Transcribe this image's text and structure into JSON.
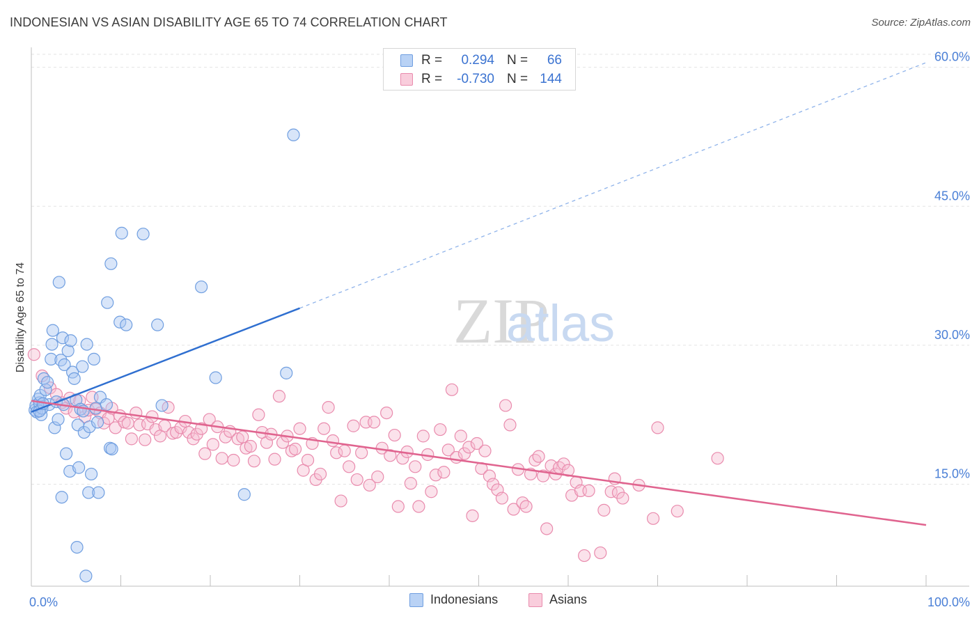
{
  "header": {
    "title": "INDONESIAN VS ASIAN DISABILITY AGE 65 TO 74 CORRELATION CHART",
    "source": "Source: ZipAtlas.com"
  },
  "watermark": {
    "part1": "ZIP",
    "part2": "atlas"
  },
  "legend": {
    "rows": [
      {
        "r_label": "R =",
        "r_value": "0.294",
        "n_label": "N =",
        "n_value": "66"
      },
      {
        "r_label": "R =",
        "r_value": "-0.730",
        "n_label": "N =",
        "n_value": "144"
      }
    ]
  },
  "chart_data": {
    "type": "scatter",
    "title": "INDONESIAN VS ASIAN DISABILITY AGE 65 TO 74 CORRELATION CHART",
    "xlabel": "",
    "ylabel": "Disability Age 65 to 74",
    "xlim": [
      0,
      100
    ],
    "ylim": [
      4,
      62
    ],
    "x_tick_labels": [
      "0.0%",
      "100.0%"
    ],
    "y_ticks": [
      15,
      30,
      45,
      60
    ],
    "y_tick_labels": [
      "15.0%",
      "30.0%",
      "45.0%",
      "60.0%"
    ],
    "grid": true,
    "legend_position": "top-center",
    "colors": {
      "indonesians_fill": "#a9c6f1",
      "indonesians_stroke": "#6f9ee0",
      "indonesians_line": "#2f6fd0",
      "asians_fill": "#f6bfd2",
      "asians_stroke": "#e98bad",
      "asians_line": "#e0648f",
      "tick_label": "#4a7fd6"
    },
    "series": [
      {
        "name": "Indonesians",
        "r": 0.294,
        "n": 66,
        "trend": {
          "x0": 0,
          "y0": 22.8,
          "x1": 30,
          "y1": 34.0,
          "dash_to_x": 100,
          "dash_to_y": 60.5
        },
        "points": [
          [
            0.4,
            23.0
          ],
          [
            0.5,
            23.5
          ],
          [
            0.6,
            22.8
          ],
          [
            0.8,
            24.2
          ],
          [
            0.9,
            23.8
          ],
          [
            1.0,
            24.6
          ],
          [
            1.1,
            22.5
          ],
          [
            1.2,
            23.2
          ],
          [
            1.4,
            26.4
          ],
          [
            1.6,
            25.2
          ],
          [
            1.8,
            26.0
          ],
          [
            2.0,
            23.6
          ],
          [
            2.2,
            28.5
          ],
          [
            2.3,
            30.1
          ],
          [
            2.4,
            31.6
          ],
          [
            2.6,
            21.1
          ],
          [
            2.8,
            23.9
          ],
          [
            3.0,
            22.0
          ],
          [
            3.1,
            36.8
          ],
          [
            3.3,
            28.4
          ],
          [
            3.4,
            13.6
          ],
          [
            3.5,
            30.8
          ],
          [
            3.6,
            23.6
          ],
          [
            3.7,
            27.9
          ],
          [
            3.9,
            18.3
          ],
          [
            4.1,
            29.4
          ],
          [
            4.3,
            16.4
          ],
          [
            4.4,
            30.5
          ],
          [
            4.6,
            27.1
          ],
          [
            4.8,
            26.4
          ],
          [
            5.0,
            24.1
          ],
          [
            5.1,
            8.2
          ],
          [
            5.2,
            21.4
          ],
          [
            5.3,
            16.8
          ],
          [
            5.5,
            23.1
          ],
          [
            5.7,
            27.7
          ],
          [
            5.8,
            22.9
          ],
          [
            5.9,
            20.6
          ],
          [
            6.1,
            5.1
          ],
          [
            6.2,
            30.1
          ],
          [
            6.4,
            14.1
          ],
          [
            6.5,
            21.2
          ],
          [
            6.7,
            16.1
          ],
          [
            7.0,
            28.5
          ],
          [
            7.2,
            23.2
          ],
          [
            7.4,
            21.7
          ],
          [
            7.5,
            14.1
          ],
          [
            7.7,
            24.4
          ],
          [
            8.4,
            23.6
          ],
          [
            8.5,
            34.6
          ],
          [
            8.8,
            18.9
          ],
          [
            8.9,
            38.8
          ],
          [
            9.0,
            18.8
          ],
          [
            9.9,
            32.5
          ],
          [
            10.1,
            42.1
          ],
          [
            10.6,
            32.2
          ],
          [
            12.5,
            42.0
          ],
          [
            14.1,
            32.2
          ],
          [
            14.6,
            23.5
          ],
          [
            19.0,
            36.3
          ],
          [
            20.6,
            26.5
          ],
          [
            23.8,
            13.9
          ],
          [
            28.5,
            27.0
          ],
          [
            29.3,
            52.7
          ],
          [
            0.9,
            22.9
          ],
          [
            1.3,
            23.7
          ]
        ]
      },
      {
        "name": "Asians",
        "r": -0.73,
        "n": 144,
        "trend": {
          "x0": 0,
          "y0": 24.0,
          "x1": 100,
          "y1": 10.6
        },
        "points": [
          [
            0.3,
            29.0
          ],
          [
            1.2,
            26.7
          ],
          [
            2.1,
            25.4
          ],
          [
            2.8,
            24.7
          ],
          [
            3.4,
            23.8
          ],
          [
            3.9,
            23.2
          ],
          [
            4.3,
            24.3
          ],
          [
            4.8,
            22.8
          ],
          [
            5.4,
            24.0
          ],
          [
            6.0,
            22.3
          ],
          [
            6.4,
            23.0
          ],
          [
            6.8,
            24.4
          ],
          [
            7.2,
            23.1
          ],
          [
            7.7,
            22.7
          ],
          [
            8.1,
            21.6
          ],
          [
            8.6,
            22.1
          ],
          [
            9.0,
            23.2
          ],
          [
            9.4,
            21.1
          ],
          [
            9.9,
            22.4
          ],
          [
            10.4,
            21.7
          ],
          [
            10.8,
            21.6
          ],
          [
            11.2,
            19.9
          ],
          [
            11.7,
            22.7
          ],
          [
            12.1,
            21.4
          ],
          [
            12.7,
            19.8
          ],
          [
            13.0,
            21.5
          ],
          [
            13.5,
            22.3
          ],
          [
            13.9,
            20.9
          ],
          [
            14.4,
            20.2
          ],
          [
            14.9,
            21.3
          ],
          [
            15.3,
            23.3
          ],
          [
            15.8,
            20.5
          ],
          [
            16.2,
            20.6
          ],
          [
            16.7,
            21.1
          ],
          [
            17.2,
            21.8
          ],
          [
            17.6,
            20.6
          ],
          [
            18.1,
            19.9
          ],
          [
            18.5,
            20.4
          ],
          [
            19.0,
            21.0
          ],
          [
            19.4,
            18.3
          ],
          [
            19.9,
            22.0
          ],
          [
            20.3,
            19.3
          ],
          [
            20.8,
            21.2
          ],
          [
            21.3,
            17.8
          ],
          [
            21.7,
            20.1
          ],
          [
            22.2,
            20.7
          ],
          [
            22.6,
            17.6
          ],
          [
            23.1,
            19.9
          ],
          [
            23.6,
            20.1
          ],
          [
            24.0,
            18.9
          ],
          [
            24.5,
            19.1
          ],
          [
            24.9,
            17.5
          ],
          [
            25.4,
            22.5
          ],
          [
            25.8,
            20.6
          ],
          [
            26.3,
            19.5
          ],
          [
            26.8,
            20.4
          ],
          [
            27.2,
            17.7
          ],
          [
            27.7,
            24.5
          ],
          [
            28.1,
            19.5
          ],
          [
            28.6,
            20.2
          ],
          [
            29.1,
            18.6
          ],
          [
            29.5,
            18.8
          ],
          [
            30.0,
            21.0
          ],
          [
            30.4,
            16.5
          ],
          [
            30.9,
            17.6
          ],
          [
            31.4,
            19.4
          ],
          [
            31.8,
            15.5
          ],
          [
            32.3,
            16.1
          ],
          [
            32.7,
            21.0
          ],
          [
            33.2,
            23.3
          ],
          [
            33.7,
            19.7
          ],
          [
            34.1,
            18.4
          ],
          [
            34.6,
            13.2
          ],
          [
            35.0,
            18.6
          ],
          [
            35.5,
            16.9
          ],
          [
            36.0,
            21.3
          ],
          [
            36.4,
            15.5
          ],
          [
            36.9,
            18.4
          ],
          [
            37.4,
            21.7
          ],
          [
            37.8,
            14.9
          ],
          [
            38.3,
            21.7
          ],
          [
            38.7,
            15.8
          ],
          [
            39.2,
            18.9
          ],
          [
            39.7,
            22.7
          ],
          [
            40.1,
            18.1
          ],
          [
            40.6,
            20.3
          ],
          [
            41.0,
            12.6
          ],
          [
            41.5,
            17.8
          ],
          [
            42.0,
            18.5
          ],
          [
            42.4,
            15.1
          ],
          [
            42.9,
            16.9
          ],
          [
            43.3,
            12.6
          ],
          [
            43.8,
            20.2
          ],
          [
            44.3,
            18.2
          ],
          [
            44.7,
            14.2
          ],
          [
            45.2,
            16.0
          ],
          [
            45.7,
            20.9
          ],
          [
            46.1,
            16.3
          ],
          [
            46.6,
            18.7
          ],
          [
            47.0,
            25.2
          ],
          [
            47.5,
            17.9
          ],
          [
            48.0,
            20.2
          ],
          [
            48.4,
            18.3
          ],
          [
            48.9,
            19.0
          ],
          [
            49.3,
            11.6
          ],
          [
            49.8,
            19.4
          ],
          [
            50.3,
            16.7
          ],
          [
            50.7,
            18.6
          ],
          [
            51.2,
            15.9
          ],
          [
            51.6,
            15.0
          ],
          [
            52.1,
            14.4
          ],
          [
            52.6,
            13.5
          ],
          [
            53.0,
            23.5
          ],
          [
            53.5,
            21.4
          ],
          [
            53.9,
            12.3
          ],
          [
            54.4,
            16.6
          ],
          [
            54.9,
            13.0
          ],
          [
            55.3,
            12.6
          ],
          [
            55.8,
            16.1
          ],
          [
            56.3,
            17.6
          ],
          [
            56.7,
            18.0
          ],
          [
            57.2,
            15.9
          ],
          [
            57.6,
            10.2
          ],
          [
            58.1,
            17.0
          ],
          [
            58.6,
            16.1
          ],
          [
            59.0,
            16.8
          ],
          [
            59.5,
            17.2
          ],
          [
            60.0,
            16.5
          ],
          [
            60.4,
            13.8
          ],
          [
            60.9,
            15.2
          ],
          [
            61.4,
            14.3
          ],
          [
            61.8,
            7.3
          ],
          [
            62.3,
            14.3
          ],
          [
            63.6,
            7.6
          ],
          [
            64.0,
            12.2
          ],
          [
            64.8,
            14.2
          ],
          [
            65.2,
            15.6
          ],
          [
            65.6,
            14.1
          ],
          [
            66.1,
            13.5
          ],
          [
            67.9,
            14.9
          ],
          [
            69.5,
            11.3
          ],
          [
            70.0,
            21.1
          ],
          [
            72.2,
            12.1
          ],
          [
            76.7,
            17.8
          ]
        ]
      }
    ]
  }
}
